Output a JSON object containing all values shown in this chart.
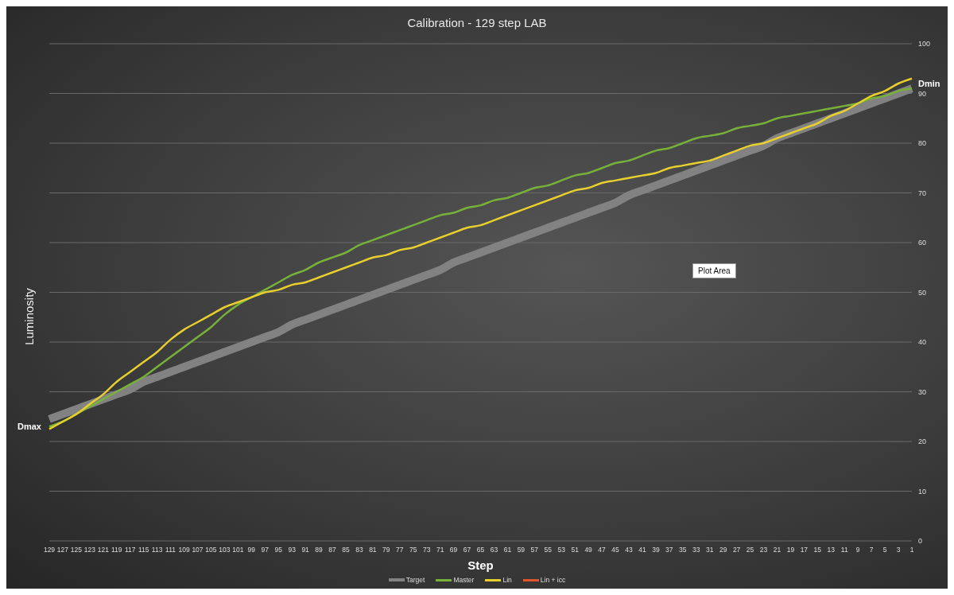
{
  "chart_data": {
    "type": "line",
    "title": "Calibration - 129 step LAB",
    "xlabel": "Step",
    "ylabel": "Luminosity",
    "categories": [
      "129",
      "127",
      "125",
      "123",
      "121",
      "119",
      "117",
      "115",
      "113",
      "111",
      "109",
      "107",
      "105",
      "103",
      "101",
      "99",
      "97",
      "95",
      "93",
      "91",
      "89",
      "87",
      "85",
      "83",
      "81",
      "79",
      "77",
      "75",
      "73",
      "71",
      "69",
      "67",
      "65",
      "63",
      "61",
      "59",
      "57",
      "55",
      "53",
      "51",
      "49",
      "47",
      "45",
      "43",
      "41",
      "39",
      "37",
      "35",
      "33",
      "31",
      "29",
      "27",
      "25",
      "23",
      "21",
      "19",
      "17",
      "15",
      "13",
      "11",
      "9",
      "7",
      "5",
      "3",
      "1"
    ],
    "series": [
      {
        "name": "Target",
        "color": "#828282",
        "values": [
          24.5,
          25.5,
          26.5,
          27.5,
          28.5,
          29.5,
          30.5,
          32,
          33,
          34,
          35,
          36,
          37,
          38,
          39,
          40,
          41,
          42,
          43.5,
          44.5,
          45.5,
          46.5,
          47.5,
          48.5,
          49.5,
          50.5,
          51.5,
          52.5,
          53.5,
          54.5,
          56,
          57,
          58,
          59,
          60,
          61,
          62,
          63,
          64,
          65,
          66,
          67,
          68,
          69.5,
          70.5,
          71.5,
          72.5,
          73.5,
          74.5,
          75.5,
          76.5,
          77.5,
          78.5,
          79.5,
          81,
          82,
          83,
          84,
          85,
          86,
          87,
          88,
          89,
          90,
          91
        ]
      },
      {
        "name": "Master",
        "color": "#78b13a",
        "values": [
          23,
          24,
          25.5,
          27,
          28.5,
          30,
          31.5,
          33,
          35,
          37,
          39,
          41,
          43,
          45.5,
          47.5,
          49,
          50.5,
          52,
          53.5,
          54.5,
          56,
          57,
          58,
          59.5,
          60.5,
          61.5,
          62.5,
          63.5,
          64.5,
          65.5,
          66,
          67,
          67.5,
          68.5,
          69,
          70,
          71,
          71.5,
          72.5,
          73.5,
          74,
          75,
          76,
          76.5,
          77.5,
          78.5,
          79,
          80,
          81,
          81.5,
          82,
          83,
          83.5,
          84,
          85,
          85.5,
          86,
          86.5,
          87,
          87.5,
          88,
          89,
          89.5,
          90.5,
          91
        ]
      },
      {
        "name": "Lin",
        "color": "#e6cf2e",
        "values": [
          22.5,
          24,
          25.5,
          27.5,
          29.5,
          32,
          34,
          36,
          38,
          40.5,
          42.5,
          44,
          45.5,
          47,
          48,
          49,
          50,
          50.5,
          51.5,
          52,
          53,
          54,
          55,
          56,
          57,
          57.5,
          58.5,
          59,
          60,
          61,
          62,
          63,
          63.5,
          64.5,
          65.5,
          66.5,
          67.5,
          68.5,
          69.5,
          70.5,
          71,
          72,
          72.5,
          73,
          73.5,
          74,
          75,
          75.5,
          76,
          76.5,
          77.5,
          78.5,
          79.5,
          80,
          81,
          82,
          83,
          84,
          85.5,
          86.5,
          88,
          89.5,
          90.5,
          92,
          93
        ]
      },
      {
        "name": "Lin + icc",
        "color": "#e0552a",
        "values": [
          null,
          null,
          null,
          null,
          null,
          null,
          null,
          null,
          null,
          null,
          null,
          null,
          null,
          null,
          null,
          null,
          null,
          null,
          null,
          null,
          null,
          null,
          null,
          null,
          null,
          null,
          null,
          null,
          null,
          null,
          null,
          null,
          null,
          null,
          null,
          null,
          null,
          null,
          null,
          null,
          null,
          null,
          null,
          null,
          null,
          null,
          null,
          null,
          null,
          null,
          null,
          null,
          null,
          null,
          null,
          null,
          null,
          null,
          null,
          null,
          null,
          null,
          null,
          null,
          null
        ]
      }
    ],
    "ylim": [
      0,
      100
    ],
    "yticks": [
      0,
      10,
      20,
      30,
      40,
      50,
      60,
      70,
      80,
      90,
      100
    ],
    "grid": "y",
    "legend": "bottom",
    "marker": "none",
    "line_style": "solid",
    "annotations": [
      {
        "text": "Dmax",
        "x": "129",
        "y": 23
      },
      {
        "text": "Dmin",
        "x": "1",
        "y": 92
      },
      "Plot Area"
    ]
  }
}
